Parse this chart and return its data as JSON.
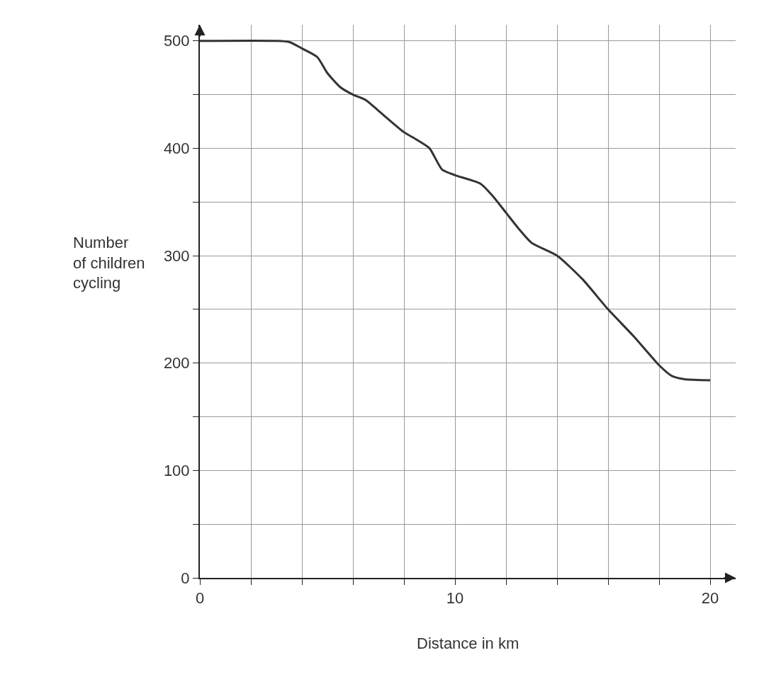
{
  "chart_data": {
    "type": "line",
    "xlabel": "Distance in km",
    "ylabel": "Number\nof children\ncycling",
    "x": [
      0,
      3,
      3.5,
      4,
      4.6,
      5,
      5.5,
      6,
      6.5,
      7,
      8,
      8.5,
      9,
      9.5,
      10,
      11,
      11.5,
      12,
      12.5,
      13,
      14,
      15,
      16,
      17,
      18,
      18.5,
      19,
      20
    ],
    "series": [
      {
        "color": "#333333",
        "values": [
          500,
          500,
          499,
          493,
          485,
          470,
          457,
          450,
          445,
          435,
          415,
          408,
          400,
          380,
          375,
          367,
          355,
          340,
          325,
          312,
          300,
          278,
          250,
          225,
          198,
          188,
          185,
          184
        ]
      }
    ],
    "xlim": [
      0,
      21
    ],
    "ylim": [
      0,
      515
    ],
    "xticks": [
      0,
      {
        "value": 2,
        "label": null
      },
      {
        "value": 4,
        "label": null
      },
      {
        "value": 6,
        "label": null
      },
      {
        "value": 8,
        "label": null
      },
      10,
      {
        "value": 12,
        "label": null
      },
      {
        "value": 14,
        "label": null
      },
      {
        "value": 16,
        "label": null
      },
      {
        "value": 18,
        "label": null
      },
      20
    ],
    "yticks": [
      0,
      {
        "value": 50,
        "label": null
      },
      100,
      {
        "value": 150,
        "label": null
      },
      200,
      {
        "value": 250,
        "label": null
      },
      300,
      {
        "value": 350,
        "label": null
      },
      400,
      {
        "value": 450,
        "label": null
      },
      500
    ],
    "grid": true,
    "legend": false,
    "marker": "none",
    "line_style": "solid"
  }
}
